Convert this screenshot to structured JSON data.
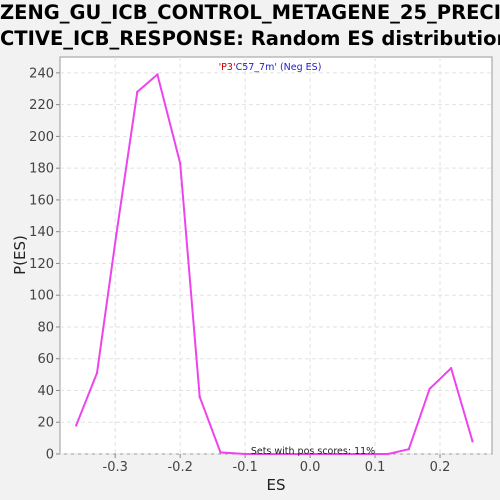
{
  "title": {
    "line1": "ZENG_GU_ICB_CONTROL_METAGENE_25_PRECI",
    "line2": "CTIVE_ICB_RESPONSE: Random ES distribution"
  },
  "chart_data": {
    "type": "line",
    "xlabel": "ES",
    "ylabel": "P(ES)",
    "xlim": [
      -0.385,
      0.28
    ],
    "ylim": [
      0,
      250
    ],
    "grid": true,
    "xticks": [
      -0.3,
      -0.2,
      -0.1,
      0.0,
      0.1,
      0.2
    ],
    "xtick_labels": [
      "-0.3",
      "-0.2",
      "-0.1",
      "0.0",
      "0.1",
      "0.2"
    ],
    "yticks": [
      0,
      20,
      40,
      60,
      80,
      100,
      120,
      140,
      160,
      180,
      200,
      220,
      240
    ],
    "ytick_labels": [
      "0",
      "20",
      "40",
      "60",
      "80",
      "100",
      "120",
      "140",
      "160",
      "180",
      "200",
      "220",
      "240"
    ],
    "series": [
      {
        "color": "#ee44ee",
        "x": [
          -0.36,
          -0.328,
          -0.298,
          -0.266,
          -0.235,
          -0.2,
          -0.17,
          -0.138,
          -0.1,
          -0.06,
          0.0,
          0.06,
          0.12,
          0.152,
          0.184,
          0.217,
          0.25
        ],
        "y": [
          18,
          51,
          139,
          228,
          239,
          183,
          36,
          1,
          0,
          0,
          0,
          0,
          0,
          3,
          41,
          54,
          8
        ]
      }
    ],
    "annotations": {
      "top_part1": "'P3'",
      "top_part2": "C57_7m' (Neg ES)",
      "top_color1": "#cc0000",
      "top_color2": "#2222cc",
      "bottom": "Sets with pos scores: 11%"
    }
  }
}
